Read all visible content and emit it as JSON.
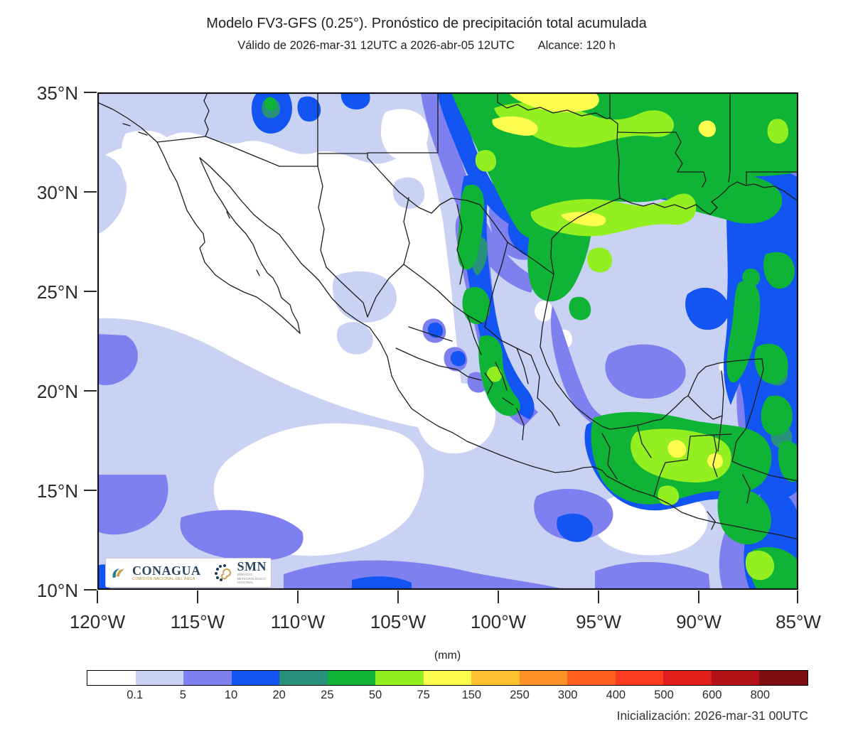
{
  "header": {
    "title": "Modelo FV3-GFS (0.25°). Pronóstico de precipitación total acumulada",
    "subtitle_valid": "Válido de 2026-mar-31 12UTC a 2026-abr-05 12UTC",
    "subtitle_reach": "Alcance: 120 h"
  },
  "axes": {
    "lat_ticks": [
      "35°N",
      "30°N",
      "25°N",
      "20°N",
      "15°N",
      "10°N"
    ],
    "lon_ticks": [
      "120°W",
      "115°W",
      "110°W",
      "105°W",
      "100°W",
      "95°W",
      "90°W",
      "85°W"
    ]
  },
  "colorbar": {
    "units_label": "(mm)",
    "tick_labels": [
      "0.1",
      "5",
      "10",
      "20",
      "25",
      "50",
      "75",
      "150",
      "250",
      "300",
      "400",
      "500",
      "600",
      "800"
    ],
    "colors": [
      "#ffffff",
      "#c9d2f3",
      "#7d80ee",
      "#1355f2",
      "#28917c",
      "#0fb437",
      "#94ef21",
      "#fdfd4d",
      "#fdc12f",
      "#fd9326",
      "#fd5f1d",
      "#f93b20",
      "#e01d1b",
      "#b21217",
      "#7d0d11"
    ]
  },
  "legend_colors": {
    "light": "#c9d2f3",
    "medium": "#7d80ee",
    "blue": "#1355f2",
    "teal": "#28917c",
    "green": "#0fb437",
    "chartreuse": "#94ef21",
    "yellow": "#fdfd4d"
  },
  "logos": {
    "conagua": {
      "name": "CONAGUA",
      "tagline": "COMISIÓN NACIONAL DEL AGUA"
    },
    "smn": {
      "name": "SMN",
      "tagline_lines": [
        "SERVICIO",
        "METEOROLÓGICO",
        "NACIONAL"
      ]
    }
  },
  "footer": {
    "initialization": "Inicialización: 2026-mar-31 00UTC"
  }
}
